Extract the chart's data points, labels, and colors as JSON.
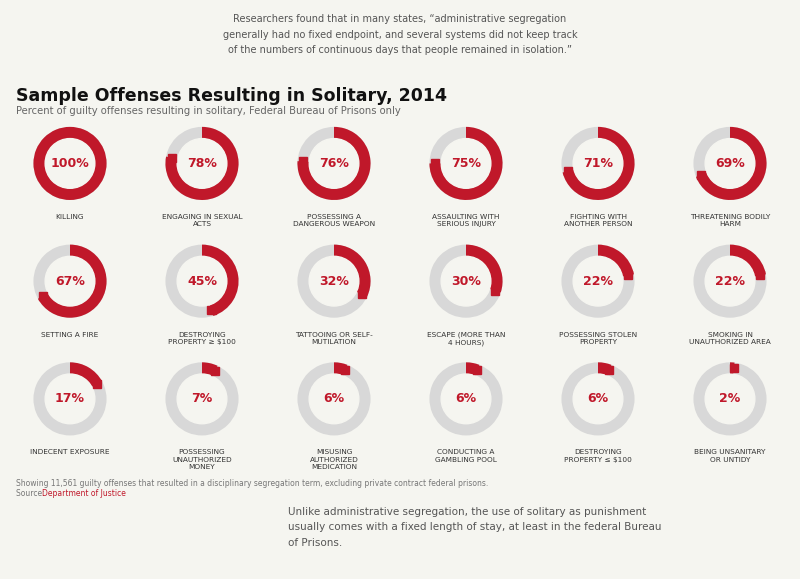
{
  "title": "Sample Offenses Resulting in Solitary, 2014",
  "subtitle": "Percent of guilty offenses resulting in solitary, Federal Bureau of Prisons only",
  "top_quote": "Researchers found that in many states, “administrative segregation\ngenerally had no fixed endpoint, and several systems did not keep track\nof the numbers of continuous days that people remained in isolation.”",
  "bottom_text": "Unlike administrative segregation, the use of solitary as punishment\nusually comes with a fixed length of stay, at least in the federal Bureau\nof Prisons.",
  "footnote_line1": "Showing 11,561 guilty offenses that resulted in a disciplinary segregation term, excluding private contract federal prisons.",
  "footnote_line2": "Source: ",
  "footnote_link": "Department of Justice",
  "offenses": [
    {
      "label": "KILLING",
      "value": 100
    },
    {
      "label": "ENGAGING IN SEXUAL\nACTS",
      "value": 78
    },
    {
      "label": "POSSESSING A\nDANGEROUS WEAPON",
      "value": 76
    },
    {
      "label": "ASSAULTING WITH\nSERIOUS INJURY",
      "value": 75
    },
    {
      "label": "FIGHTING WITH\nANOTHER PERSON",
      "value": 71
    },
    {
      "label": "THREATENING BODILY\nHARM",
      "value": 69
    },
    {
      "label": "SETTING A FIRE",
      "value": 67
    },
    {
      "label": "DESTROYING\nPROPERTY ≥ $100",
      "value": 45
    },
    {
      "label": "TATTOOING OR SELF-\nMUTILATION",
      "value": 32
    },
    {
      "label": "ESCAPE (MORE THAN\n4 HOURS)",
      "value": 30
    },
    {
      "label": "POSSESSING STOLEN\nPROPERTY",
      "value": 22
    },
    {
      "label": "SMOKING IN\nUNAUTHORIZED AREA",
      "value": 22
    },
    {
      "label": "INDECENT EXPOSURE",
      "value": 17
    },
    {
      "label": "POSSESSING\nUNAUTHORIZED\nMONEY",
      "value": 7
    },
    {
      "label": "MISUSING\nAUTHORIZED\nMEDICATION",
      "value": 6
    },
    {
      "label": "CONDUCTING A\nGAMBLING POOL",
      "value": 6
    },
    {
      "label": "DESTROYING\nPROPERTY ≤ $100",
      "value": 6
    },
    {
      "label": "BEING UNSANITARY\nOR UNTIDY",
      "value": 2
    }
  ],
  "red_color": "#c0182a",
  "light_gray": "#d8d8d8",
  "bg_color": "#f5f5f0",
  "title_color": "#111111",
  "label_color": "#333333",
  "link_color": "#c0182a",
  "cols": 6,
  "rows": 3,
  "outer_r": 1.0,
  "inner_r": 0.68
}
